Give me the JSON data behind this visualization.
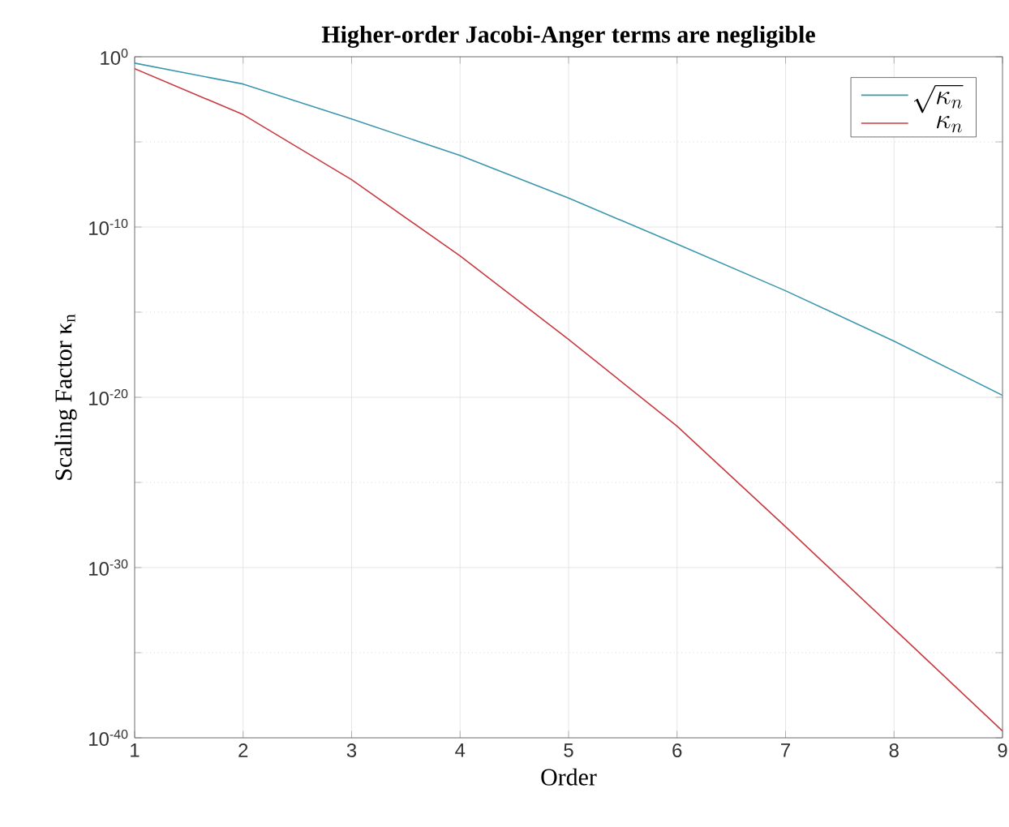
{
  "chart_data": {
    "type": "line",
    "title": "Higher-order Jacobi-Anger terms are negligible",
    "xlabel": "Order",
    "ylabel": "Scaling Factor κ$_{n}$",
    "x": [
      1,
      2,
      3,
      4,
      5,
      6,
      7,
      8,
      9
    ],
    "series": [
      {
        "name": "\\sqrt{\\kappa_n}",
        "color": "#3a97ad",
        "values": [
          0.42,
          0.025,
          0.00022,
          1.6e-06,
          5e-09,
          1e-11,
          1.8e-14,
          2e-17,
          1.3e-20
        ]
      },
      {
        "name": "\\kappa_n",
        "color": "#c83a40",
        "values": [
          0.2,
          0.0004,
          6e-08,
          2e-12,
          2.5e-17,
          2e-22,
          2.5e-28,
          2.5e-34,
          2.5e-40
        ]
      }
    ],
    "xlim": [
      1,
      9
    ],
    "xticks": [
      1,
      2,
      3,
      4,
      5,
      6,
      7,
      8,
      9
    ],
    "ylim": [
      1e-40,
      1
    ],
    "log": "y",
    "yticks": [
      {
        "value": 1e-40,
        "label": "10$^{-40}$"
      },
      {
        "value": 1e-35,
        "label": null
      },
      {
        "value": 1e-30,
        "label": "10$^{-30}$"
      },
      {
        "value": 1e-25,
        "label": null
      },
      {
        "value": 1e-20,
        "label": "10$^{-20}$"
      },
      {
        "value": 1e-15,
        "label": null
      },
      {
        "value": 1e-10,
        "label": "10$^{-10}$"
      },
      {
        "value": 1e-05,
        "label": null
      },
      {
        "value": 1,
        "label": "10$^{0}$"
      }
    ],
    "grid": true,
    "legend": "top right",
    "marker": "none",
    "line_style": "solid"
  }
}
